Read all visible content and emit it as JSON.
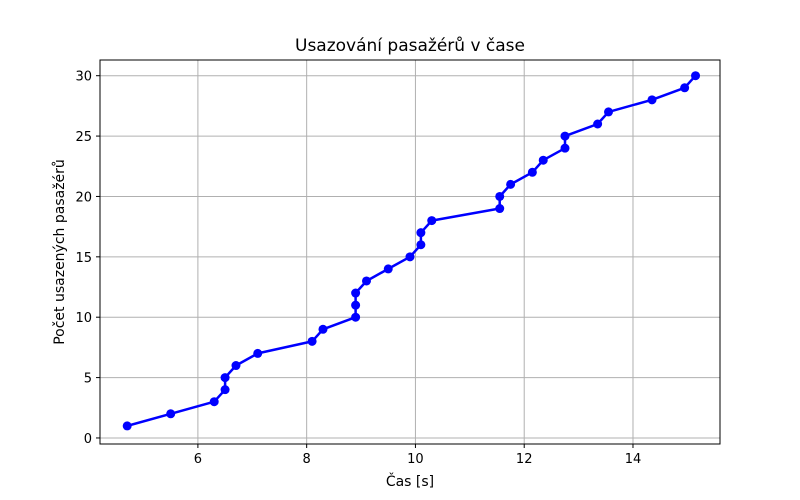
{
  "chart_data": {
    "type": "line",
    "title": "Usazování pasažérů v čase",
    "xlabel": "Čas [s]",
    "ylabel": "Počet usazených pasažérů",
    "xlim": [
      4.2,
      15.6
    ],
    "ylim": [
      -0.5,
      31.3
    ],
    "xticks": [
      6,
      8,
      10,
      12,
      14
    ],
    "yticks": [
      0,
      5,
      10,
      15,
      20,
      25,
      30
    ],
    "grid": true,
    "color": "#0000ff",
    "series": [
      {
        "x": [
          4.7,
          5.5,
          6.3,
          6.5,
          6.5,
          6.7,
          7.1,
          8.1,
          8.3,
          8.9,
          8.9,
          8.9,
          9.1,
          9.5,
          9.9,
          10.1,
          10.1,
          10.3,
          11.55,
          11.55,
          11.75,
          12.15,
          12.35,
          12.75,
          12.75,
          13.35,
          13.55,
          14.35,
          14.95,
          15.15
        ],
        "y": [
          1,
          2,
          3,
          4,
          5,
          6,
          7,
          8,
          9,
          10,
          11,
          12,
          13,
          14,
          15,
          16,
          17,
          18,
          19,
          20,
          21,
          22,
          23,
          24,
          25,
          26,
          27,
          28,
          29,
          30
        ]
      }
    ]
  }
}
